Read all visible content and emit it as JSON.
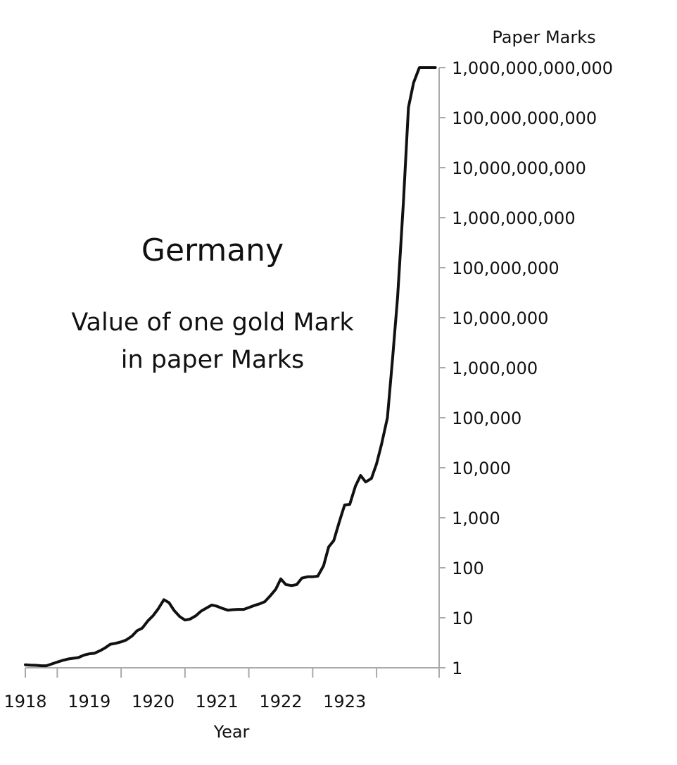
{
  "chart_data": {
    "type": "line",
    "title": "Germany",
    "subtitle": [
      "Value of one gold Mark",
      "in paper Marks"
    ],
    "xlabel": "Year",
    "ylabel": "Paper Marks",
    "y_scale": "log",
    "ylim": [
      1,
      1000000000000
    ],
    "xlim": [
      1917.5,
      1923.98
    ],
    "x_ticks": [
      "1918",
      "1919",
      "1920",
      "1921",
      "1922",
      "1923"
    ],
    "y_ticks": [
      "1",
      "10",
      "100",
      "1,000",
      "10,000",
      "100,000",
      "1,000,000",
      "10,000,000",
      "100,000,000",
      "1,000,000,000",
      "10,000,000,000",
      "100,000,000,000",
      "1,000,000,000,000"
    ],
    "grid": false,
    "line_color": "#111111",
    "series": [
      {
        "x": [
          1917.5,
          1917.58,
          1917.67,
          1917.75,
          1917.83,
          1917.92,
          1918.0,
          1918.08,
          1918.17,
          1918.25,
          1918.33,
          1918.42,
          1918.5,
          1918.58,
          1918.67,
          1918.75,
          1918.83,
          1918.92,
          1919.0,
          1919.08,
          1919.17,
          1919.25,
          1919.33,
          1919.42,
          1919.5,
          1919.58,
          1919.67,
          1919.75,
          1919.83,
          1919.92,
          1920.0,
          1920.08,
          1920.17,
          1920.25,
          1920.33,
          1920.42,
          1920.5,
          1920.58,
          1920.67,
          1920.75,
          1920.83,
          1920.92,
          1921.0,
          1921.08,
          1921.17,
          1921.25,
          1921.33,
          1921.42,
          1921.5,
          1921.58,
          1921.67,
          1921.75,
          1921.83,
          1921.92,
          1922.0,
          1922.08,
          1922.17,
          1922.25,
          1922.33,
          1922.42,
          1922.5,
          1922.58,
          1922.67,
          1922.75,
          1922.83,
          1922.92,
          1923.0,
          1923.08,
          1923.17,
          1923.25,
          1923.33,
          1923.42,
          1923.5,
          1923.58,
          1923.67,
          1923.75,
          1923.83,
          1923.92
        ],
        "values": [
          1.15,
          1.13,
          1.12,
          1.1,
          1.1,
          1.2,
          1.3,
          1.4,
          1.5,
          1.55,
          1.6,
          1.8,
          1.9,
          1.95,
          2.2,
          2.5,
          2.95,
          3.1,
          3.3,
          3.6,
          4.3,
          5.5,
          6.2,
          8.7,
          11,
          15,
          23,
          20,
          14,
          10.5,
          9,
          9.4,
          11,
          13.5,
          15.5,
          18,
          17,
          15.5,
          14.2,
          14.5,
          14.7,
          14.7,
          16,
          17.5,
          19,
          21,
          27,
          37,
          60,
          46,
          44,
          46,
          62,
          66,
          66,
          68,
          110,
          260,
          350,
          850,
          1800,
          1850,
          4300,
          7000,
          5200,
          6100,
          12000,
          30000,
          100000,
          1500000,
          26000000,
          2000000000,
          160000000000,
          500000000000,
          1000000000000,
          1000000000000,
          1000000000000,
          1000000000000
        ]
      }
    ]
  }
}
